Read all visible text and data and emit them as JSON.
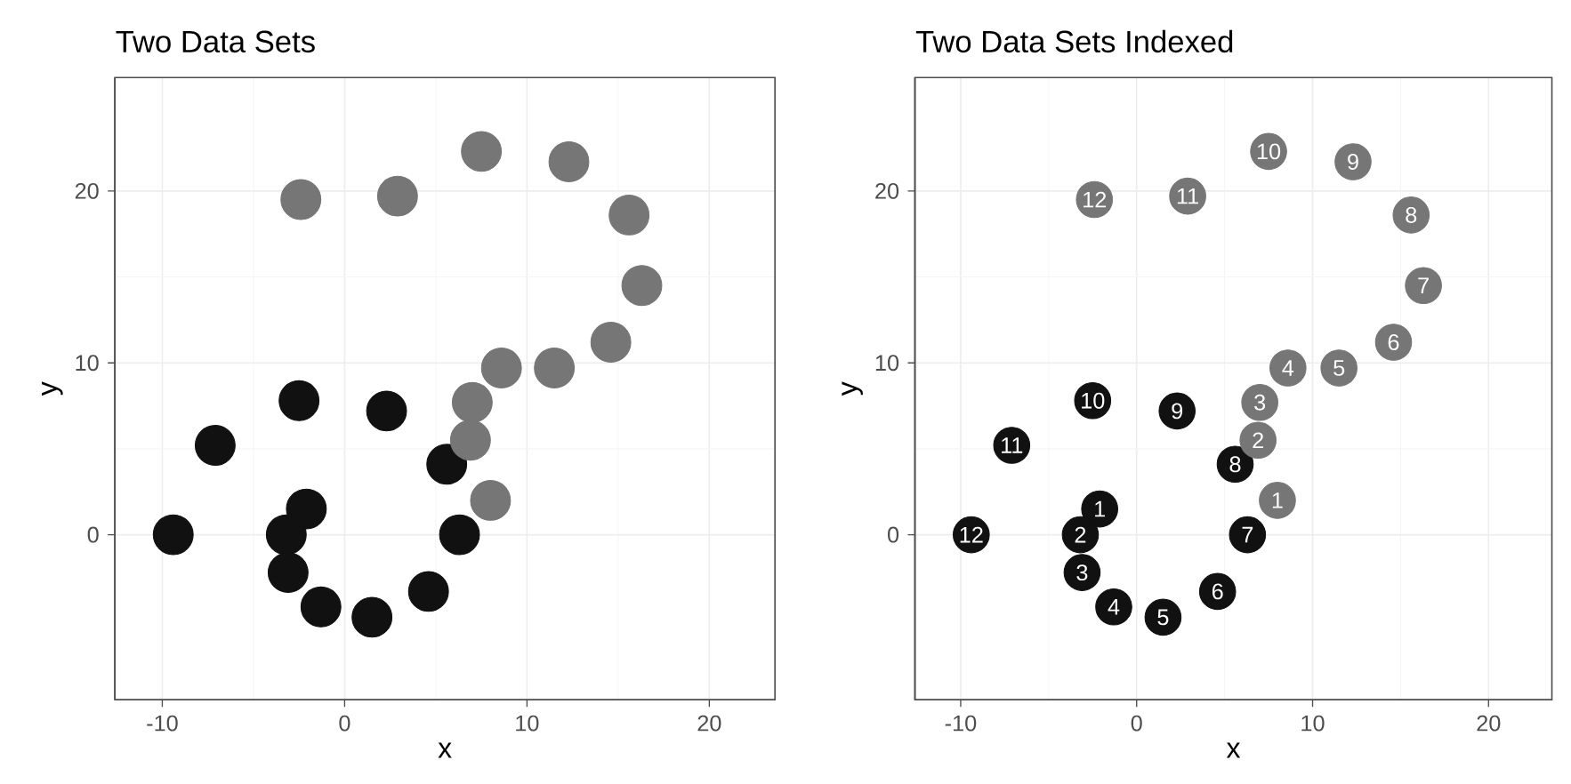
{
  "chart_data": [
    {
      "type": "scatter",
      "title": "Two Data Sets",
      "xlabel": "x",
      "ylabel": "y",
      "xlim": [
        -12.6,
        23.6
      ],
      "ylim": [
        -9.6,
        26.6
      ],
      "xticks": [
        -10,
        0,
        10,
        20
      ],
      "yticks": [
        0,
        10,
        20
      ],
      "grid": true,
      "marker": "circle",
      "series": [
        {
          "color": "#111111",
          "x": [
            -2.1,
            -3.2,
            -3.1,
            -1.3,
            1.5,
            4.6,
            6.3,
            5.6,
            2.3,
            -2.5,
            -7.1,
            -9.4
          ],
          "values": [
            1.5,
            0,
            -2.2,
            -4.2,
            -4.8,
            -3.3,
            0,
            4.1,
            7.2,
            7.8,
            5.2,
            0
          ]
        },
        {
          "color": "#767676",
          "x": [
            8.0,
            6.9,
            7.0,
            8.6,
            11.5,
            14.6,
            16.3,
            15.6,
            12.3,
            7.5,
            2.9,
            -2.4
          ],
          "values": [
            2.0,
            5.5,
            7.7,
            9.7,
            9.7,
            11.2,
            14.5,
            18.6,
            21.7,
            22.3,
            19.7,
            19.5
          ]
        }
      ]
    },
    {
      "type": "scatter",
      "title": "Two Data Sets Indexed",
      "xlabel": "x",
      "ylabel": "y",
      "xlim": [
        -12.6,
        23.6
      ],
      "ylim": [
        -9.6,
        26.6
      ],
      "xticks": [
        -10,
        0,
        10,
        20
      ],
      "yticks": [
        0,
        10,
        20
      ],
      "grid": true,
      "marker": "circle",
      "series": [
        {
          "color": "#111111",
          "x": [
            -2.1,
            -3.2,
            -3.1,
            -1.3,
            1.5,
            4.6,
            6.3,
            5.6,
            2.3,
            -2.5,
            -7.1,
            -9.4
          ],
          "values": [
            1.5,
            0,
            -2.2,
            -4.2,
            -4.8,
            -3.3,
            0,
            4.1,
            7.2,
            7.8,
            5.2,
            0
          ]
        },
        {
          "color": "#767676",
          "x": [
            8.0,
            6.9,
            7.0,
            8.6,
            11.5,
            14.6,
            16.3,
            15.6,
            12.3,
            7.5,
            2.9,
            -2.4
          ],
          "values": [
            2.0,
            5.5,
            7.7,
            9.7,
            9.7,
            11.2,
            14.5,
            18.6,
            21.7,
            22.3,
            19.7,
            19.5
          ]
        }
      ],
      "annotations": [
        {
          "text": "1",
          "x": -2.1,
          "y": 1.5
        },
        {
          "text": "2",
          "x": -3.2,
          "y": 0
        },
        {
          "text": "3",
          "x": -3.1,
          "y": -2.2
        },
        {
          "text": "4",
          "x": -1.3,
          "y": -4.2
        },
        {
          "text": "5",
          "x": 1.5,
          "y": -4.8
        },
        {
          "text": "6",
          "x": 4.6,
          "y": -3.3
        },
        {
          "text": "7",
          "x": 6.3,
          "y": 0
        },
        {
          "text": "8",
          "x": 5.6,
          "y": 4.1
        },
        {
          "text": "9",
          "x": 2.3,
          "y": 7.2
        },
        {
          "text": "10",
          "x": -2.5,
          "y": 7.8
        },
        {
          "text": "11",
          "x": -7.1,
          "y": 5.2
        },
        {
          "text": "12",
          "x": -9.4,
          "y": 0
        },
        {
          "text": "1",
          "x": 8.0,
          "y": 2.0
        },
        {
          "text": "2",
          "x": 6.9,
          "y": 5.5
        },
        {
          "text": "3",
          "x": 7.0,
          "y": 7.7
        },
        {
          "text": "4",
          "x": 8.6,
          "y": 9.7
        },
        {
          "text": "5",
          "x": 11.5,
          "y": 9.7
        },
        {
          "text": "6",
          "x": 14.6,
          "y": 11.2
        },
        {
          "text": "7",
          "x": 16.3,
          "y": 14.5
        },
        {
          "text": "8",
          "x": 15.6,
          "y": 18.6
        },
        {
          "text": "9",
          "x": 12.3,
          "y": 21.7
        },
        {
          "text": "10",
          "x": 7.5,
          "y": 22.3
        },
        {
          "text": "11",
          "x": 2.9,
          "y": 19.7
        },
        {
          "text": "12",
          "x": -2.4,
          "y": 19.5
        }
      ]
    }
  ]
}
